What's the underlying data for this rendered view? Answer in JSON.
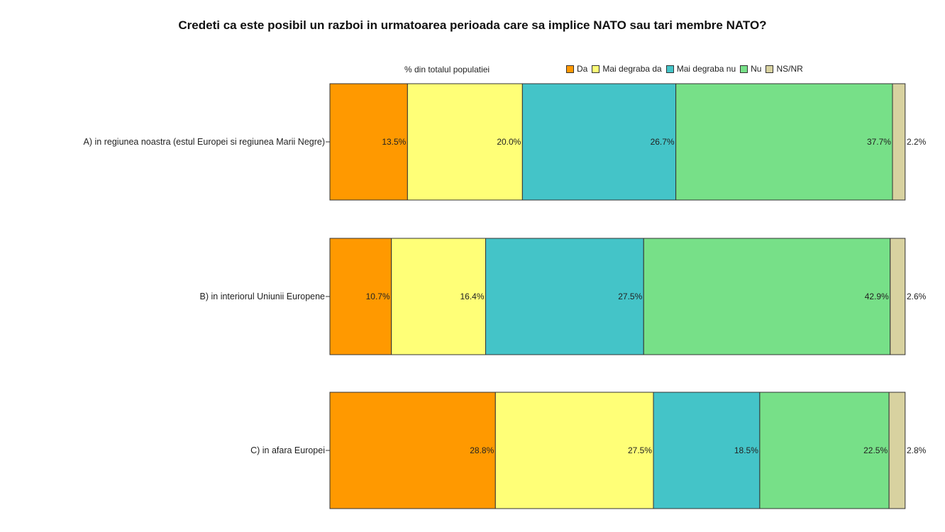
{
  "chart_data": {
    "type": "bar",
    "orientation": "horizontal",
    "stacked": true,
    "title": "Credeti ca este posibil un razboi in urmatoarea perioada care sa implice NATO sau tari membre NATO?",
    "subtitle": "% din totalul populatiei",
    "legend_position": "top-right",
    "grid": false,
    "xlim": [
      0,
      100
    ],
    "categories": [
      "A) in regiunea noastra (estul Europei si regiunea Marii Negre)",
      "B) in interiorul Uniunii Europene",
      "C) in afara Europei"
    ],
    "series": [
      {
        "name": "Da",
        "color": "#ff9900",
        "values": [
          13.5,
          10.7,
          28.8
        ],
        "labels": [
          "13.5%",
          "10.7%",
          "28.8%"
        ]
      },
      {
        "name": "Mai degraba da",
        "color": "#ffff77",
        "values": [
          20.0,
          16.4,
          27.5
        ],
        "labels": [
          "20.0%",
          "16.4%",
          "27.5%"
        ]
      },
      {
        "name": "Mai degraba nu",
        "color": "#44c4c8",
        "values": [
          26.7,
          27.5,
          18.5
        ],
        "labels": [
          "26.7%",
          "27.5%",
          "18.5%"
        ]
      },
      {
        "name": "Nu",
        "color": "#77e088",
        "values": [
          37.7,
          42.9,
          22.5
        ],
        "labels": [
          "37.7%",
          "42.9%",
          "22.5%"
        ]
      },
      {
        "name": "NS/NR",
        "color": "#d8d2a0",
        "values": [
          2.2,
          2.6,
          2.8
        ],
        "labels": [
          "2.2%",
          "2.6%",
          "2.8%"
        ]
      }
    ]
  }
}
